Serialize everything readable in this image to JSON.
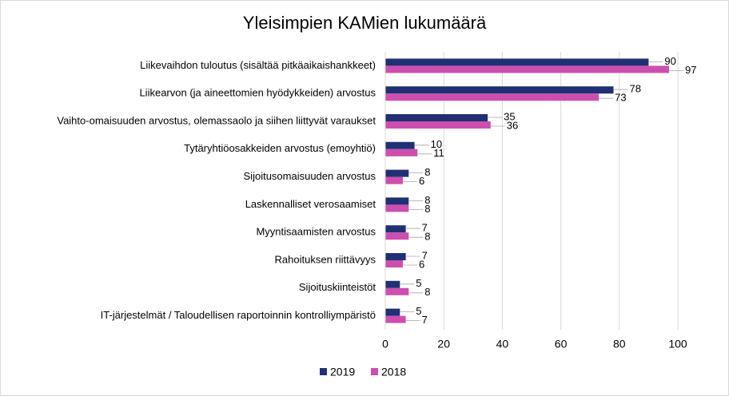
{
  "chart_data": {
    "type": "bar",
    "orientation": "horizontal",
    "title": "Yleisimpien KAMien lukumäärä",
    "categories": [
      "Liikevaihdon tuloutus (sisältää pitkäaikaishankkeet)",
      "Liikearvon (ja aineettomien hyödykkeiden) arvostus",
      "Vaihto-omaisuuden arvostus, olemassaolo ja siihen liittyvät varaukset",
      "Tytäryhtiöosakkeiden arvostus (emoyhtiö)",
      "Sijoitusomaisuuden arvostus",
      "Laskennalliset verosaamiset",
      "Myyntisaamisten arvostus",
      "Rahoituksen riittävyys",
      "Sijoituskiinteistöt",
      "IT-järjestelmät / Taloudellisen raportoinnin kontrolliympäristö"
    ],
    "series": [
      {
        "name": "2019",
        "color": "#203075",
        "values": [
          90,
          78,
          35,
          10,
          8,
          8,
          7,
          7,
          5,
          5
        ]
      },
      {
        "name": "2018",
        "color": "#cc4fae",
        "values": [
          97,
          73,
          36,
          11,
          6,
          8,
          8,
          6,
          8,
          7
        ]
      }
    ],
    "xlim": [
      0,
      100
    ],
    "xticks": [
      0,
      20,
      40,
      60,
      80,
      100
    ],
    "grid": true,
    "legend": "bottom"
  }
}
